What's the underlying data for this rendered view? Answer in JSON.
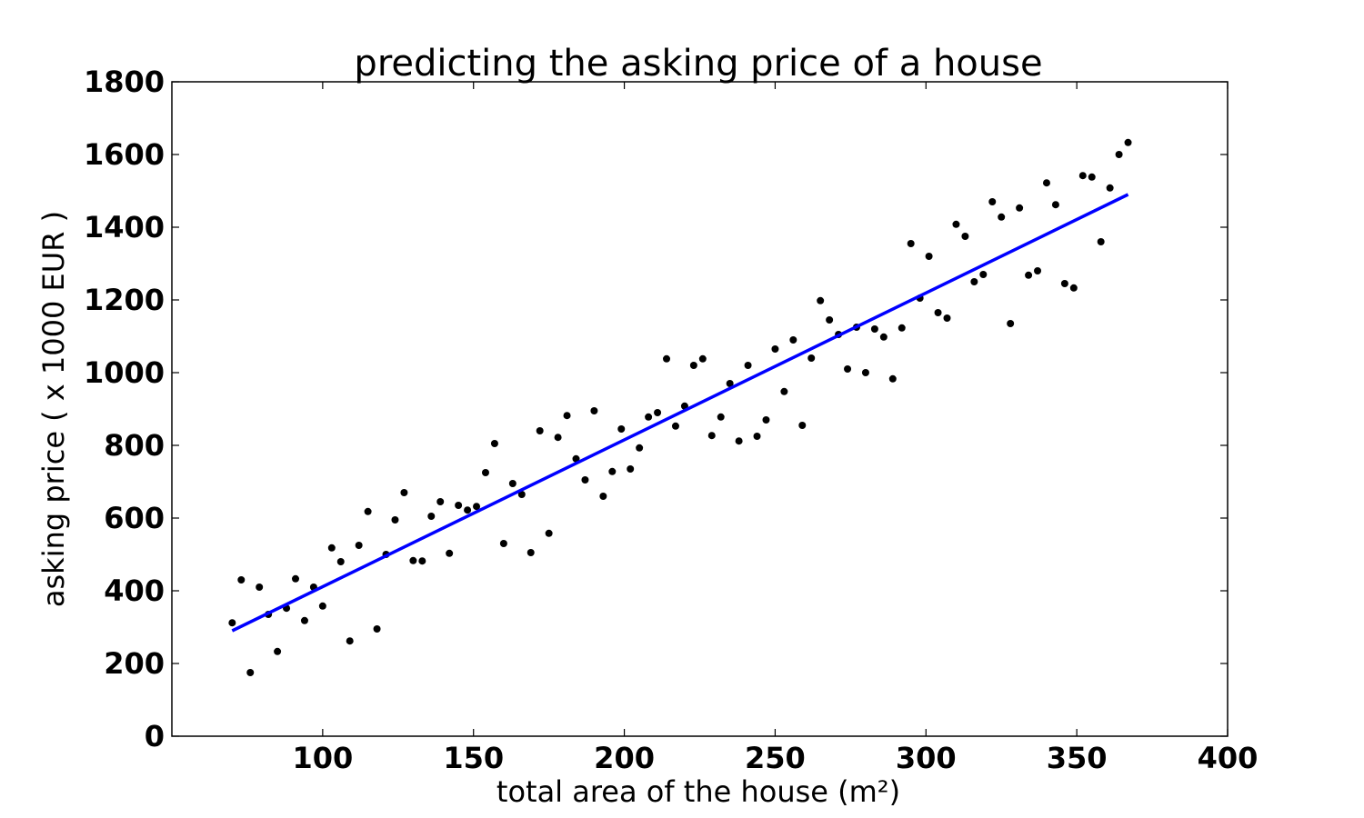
{
  "chart_data": {
    "type": "scatter",
    "title": "predicting the asking price of a house",
    "xlabel": "total area of the house (m²)",
    "ylabel": "asking price ( x 1000 EUR )",
    "xlim": [
      50,
      400
    ],
    "ylim": [
      0,
      1800
    ],
    "xticks": [
      100,
      150,
      200,
      250,
      300,
      350,
      400
    ],
    "yticks": [
      0,
      200,
      400,
      600,
      800,
      1000,
      1200,
      1400,
      1600,
      1800
    ],
    "grid": false,
    "colors": {
      "points": "#000000",
      "fit_line": "#0000ff",
      "axes": "#000000"
    },
    "series": [
      {
        "type": "scatter",
        "points": [
          [
            70,
            312
          ],
          [
            73,
            430
          ],
          [
            76,
            175
          ],
          [
            79,
            410
          ],
          [
            82,
            335
          ],
          [
            85,
            233
          ],
          [
            88,
            352
          ],
          [
            91,
            433
          ],
          [
            94,
            318
          ],
          [
            97,
            410
          ],
          [
            100,
            358
          ],
          [
            103,
            518
          ],
          [
            106,
            480
          ],
          [
            109,
            262
          ],
          [
            112,
            525
          ],
          [
            115,
            618
          ],
          [
            118,
            295
          ],
          [
            121,
            500
          ],
          [
            124,
            595
          ],
          [
            127,
            670
          ],
          [
            130,
            483
          ],
          [
            133,
            482
          ],
          [
            136,
            605
          ],
          [
            139,
            645
          ],
          [
            142,
            503
          ],
          [
            145,
            635
          ],
          [
            148,
            622
          ],
          [
            151,
            632
          ],
          [
            154,
            725
          ],
          [
            157,
            805
          ],
          [
            160,
            530
          ],
          [
            163,
            695
          ],
          [
            166,
            665
          ],
          [
            169,
            505
          ],
          [
            172,
            840
          ],
          [
            175,
            558
          ],
          [
            178,
            822
          ],
          [
            181,
            882
          ],
          [
            184,
            763
          ],
          [
            187,
            705
          ],
          [
            190,
            895
          ],
          [
            193,
            660
          ],
          [
            196,
            728
          ],
          [
            199,
            845
          ],
          [
            202,
            735
          ],
          [
            205,
            793
          ],
          [
            208,
            878
          ],
          [
            211,
            890
          ],
          [
            214,
            1038
          ],
          [
            217,
            853
          ],
          [
            220,
            908
          ],
          [
            223,
            1020
          ],
          [
            226,
            1038
          ],
          [
            229,
            827
          ],
          [
            232,
            878
          ],
          [
            235,
            970
          ],
          [
            238,
            812
          ],
          [
            241,
            1020
          ],
          [
            244,
            825
          ],
          [
            247,
            870
          ],
          [
            250,
            1065
          ],
          [
            253,
            948
          ],
          [
            256,
            1090
          ],
          [
            259,
            855
          ],
          [
            262,
            1040
          ],
          [
            265,
            1198
          ],
          [
            268,
            1145
          ],
          [
            271,
            1105
          ],
          [
            274,
            1010
          ],
          [
            277,
            1125
          ],
          [
            280,
            1000
          ],
          [
            283,
            1120
          ],
          [
            286,
            1098
          ],
          [
            289,
            983
          ],
          [
            292,
            1123
          ],
          [
            295,
            1355
          ],
          [
            298,
            1205
          ],
          [
            301,
            1320
          ],
          [
            304,
            1165
          ],
          [
            307,
            1150
          ],
          [
            310,
            1408
          ],
          [
            313,
            1375
          ],
          [
            316,
            1250
          ],
          [
            319,
            1270
          ],
          [
            322,
            1470
          ],
          [
            325,
            1428
          ],
          [
            328,
            1135
          ],
          [
            331,
            1453
          ],
          [
            334,
            1268
          ],
          [
            337,
            1280
          ],
          [
            340,
            1522
          ],
          [
            343,
            1462
          ],
          [
            346,
            1245
          ],
          [
            349,
            1233
          ],
          [
            352,
            1542
          ],
          [
            355,
            1538
          ],
          [
            358,
            1360
          ],
          [
            361,
            1508
          ],
          [
            364,
            1600
          ],
          [
            367,
            1633
          ]
        ]
      },
      {
        "type": "line",
        "points": [
          [
            70,
            290
          ],
          [
            367,
            1490
          ]
        ]
      }
    ]
  }
}
